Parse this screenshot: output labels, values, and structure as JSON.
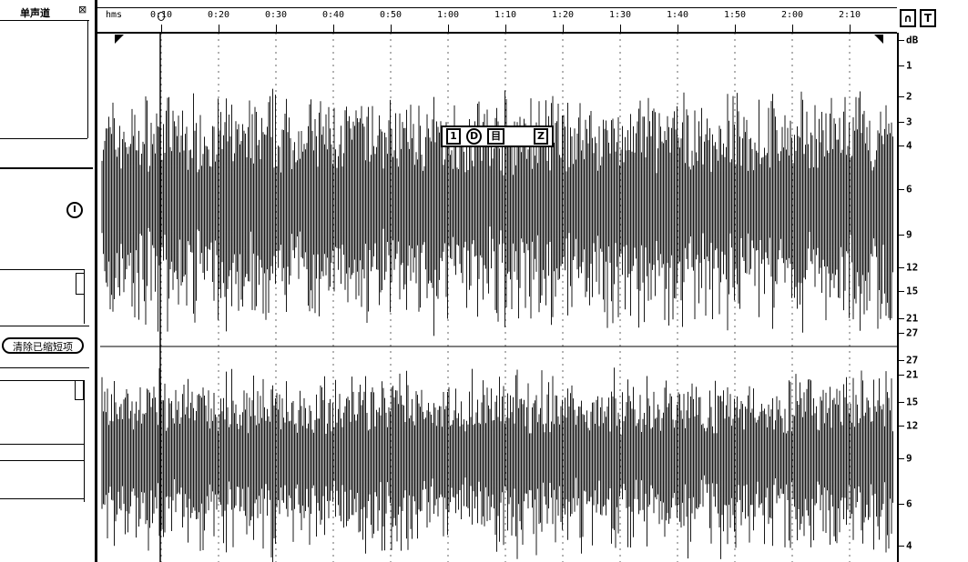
{
  "left_panel": {
    "title": "单声道",
    "clear_button_label": "清除已缩短项",
    "power_icon": "power-icon"
  },
  "ruler": {
    "unit_label": "hms",
    "ticks": [
      "0:10",
      "0:20",
      "0:30",
      "0:40",
      "0:50",
      "1:00",
      "1:10",
      "1:20",
      "1:30",
      "1:40",
      "1:50",
      "2:00",
      "2:10"
    ]
  },
  "hud": {
    "left_label": "1",
    "dial_label": "D",
    "mid_label": "目",
    "right_label": "Z"
  },
  "top_icons": [
    "headphone-icon",
    "pin-icon"
  ],
  "db_scale": {
    "unit": "dB",
    "labels": [
      "dB",
      "1",
      "2",
      "3",
      "4",
      "6",
      "9",
      "12",
      "15",
      "21",
      "27",
      "27",
      "21",
      "15",
      "12",
      "9",
      "6",
      "4"
    ]
  },
  "colors": {
    "ink": "#000000",
    "paper": "#ffffff"
  }
}
